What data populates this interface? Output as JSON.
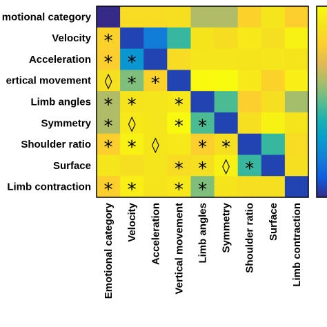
{
  "chart_data": {
    "type": "heatmap",
    "title": "",
    "rows": [
      "Emotional category",
      "Velocity",
      "Acceleration",
      "Vertical movement",
      "Limb angles",
      "Symmetry",
      "Shoulder ratio",
      "Surface",
      "Limb contraction"
    ],
    "columns": [
      "Emotional category",
      "Velocity",
      "Acceleration",
      "Vertical movement",
      "Limb angles",
      "Symmetry",
      "Shoulder ratio",
      "Surface",
      "Limb contraction"
    ],
    "row_labels_display": [
      "motional category",
      "Velocity",
      "Acceleration",
      "ertical movement",
      "Limb angles",
      "Symmetry",
      "Shoulder ratio",
      "Surface",
      "Limb contraction"
    ],
    "value_range": [
      0,
      1
    ],
    "colormap": "parula",
    "values": [
      [
        0.0,
        0.86,
        0.86,
        0.88,
        0.62,
        0.62,
        0.82,
        0.91,
        0.8
      ],
      [
        0.82,
        0.05,
        0.2,
        0.45,
        0.9,
        0.87,
        0.92,
        0.88,
        0.96
      ],
      [
        0.8,
        0.28,
        0.05,
        0.86,
        0.91,
        0.91,
        0.9,
        0.91,
        0.9
      ],
      [
        0.88,
        0.55,
        0.82,
        0.05,
        0.99,
        1.0,
        0.92,
        0.82,
        0.95
      ],
      [
        0.62,
        0.9,
        0.91,
        0.92,
        0.05,
        0.48,
        0.8,
        0.88,
        0.6
      ],
      [
        0.62,
        0.92,
        0.91,
        0.99,
        0.48,
        0.05,
        0.88,
        0.96,
        0.9
      ],
      [
        0.8,
        0.96,
        0.91,
        0.92,
        0.8,
        0.88,
        0.05,
        0.45,
        0.86
      ],
      [
        0.91,
        0.88,
        0.91,
        0.86,
        0.88,
        0.96,
        0.45,
        0.05,
        0.88
      ],
      [
        0.8,
        0.95,
        0.9,
        0.92,
        0.55,
        0.9,
        0.88,
        0.88,
        0.05
      ]
    ],
    "annotations": [
      [
        "",
        "",
        "",
        "",
        "",
        "",
        "",
        "",
        ""
      ],
      [
        "*",
        "",
        "",
        "",
        "",
        "",
        "",
        "",
        ""
      ],
      [
        "*",
        "*",
        "",
        "",
        "",
        "",
        "",
        "",
        ""
      ],
      [
        "◊",
        "*",
        "*",
        "",
        "",
        "",
        "",
        "",
        ""
      ],
      [
        "*",
        "*",
        "",
        "*",
        "",
        "",
        "",
        "",
        ""
      ],
      [
        "*",
        "◊",
        "",
        "*",
        "*",
        "",
        "",
        "",
        ""
      ],
      [
        "*",
        "*",
        "◊",
        "",
        "*",
        "*",
        "",
        "",
        ""
      ],
      [
        "",
        "",
        "",
        "*",
        "*",
        "◊",
        "*",
        "",
        ""
      ],
      [
        "*",
        "*",
        "",
        "*",
        "*",
        "",
        "",
        "",
        ""
      ]
    ],
    "colorbar": {
      "visible": true,
      "placement": "right",
      "tick_labels": []
    },
    "grid": false
  }
}
